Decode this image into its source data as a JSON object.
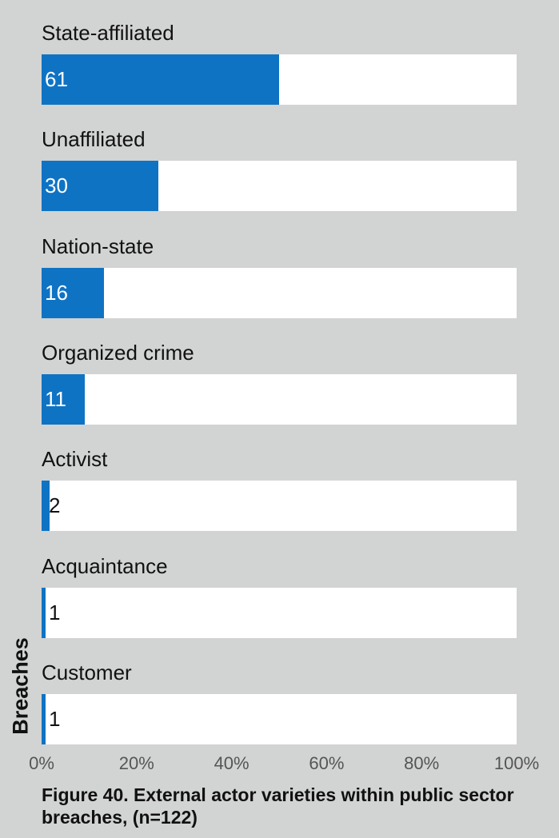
{
  "chart_data": {
    "type": "bar",
    "orientation": "horizontal",
    "categories": [
      "State-affiliated",
      "Unaffiliated",
      "Nation-state",
      "Organized crime",
      "Activist",
      "Acquaintance",
      "Customer"
    ],
    "values": [
      61,
      30,
      16,
      11,
      2,
      1,
      1
    ],
    "value_labels": [
      "61",
      "30",
      "16",
      "11",
      "2",
      "1",
      "1"
    ],
    "n": 122,
    "x_ticks": [
      "0%",
      "20%",
      "40%",
      "60%",
      "80%",
      "100%"
    ],
    "xlim": [
      0,
      100
    ],
    "ylabel": "Breaches",
    "caption": "Figure 40.  External actor varieties within public sector breaches, (n=122)",
    "bar_color": "#0f73c4",
    "track_color": "#ffffff",
    "background_color": "#d2d3d3",
    "grid": false,
    "legend": "none"
  }
}
